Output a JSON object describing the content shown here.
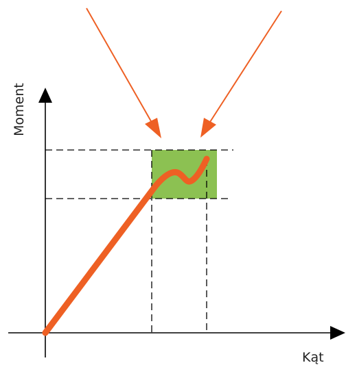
{
  "axes": {
    "y_label": "Moment",
    "x_label": "Kąt"
  },
  "colors": {
    "axis": "#000000",
    "curve": "#ee6024",
    "arrow": "#ee6024",
    "region_fill": "#8cc152",
    "dashed": "#000000"
  }
}
